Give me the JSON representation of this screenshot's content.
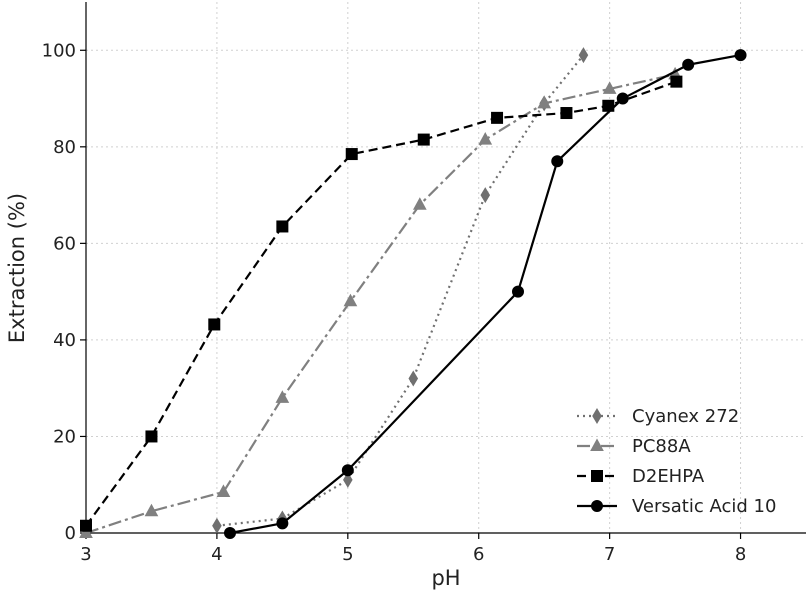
{
  "chart_data": {
    "type": "line",
    "xlabel": "pH",
    "ylabel": "Extraction (%)",
    "xlim": [
      3,
      8.5
    ],
    "ylim": [
      0,
      110
    ],
    "xticks": [
      "3",
      "4",
      "5",
      "6",
      "7",
      "8"
    ],
    "yticks": [
      "0",
      "20",
      "40",
      "60",
      "80",
      "100"
    ],
    "grid": true,
    "legend_position": "bottom-right",
    "series": [
      {
        "name": "Cyanex 272",
        "color": "#707070",
        "line_style": "dotted",
        "marker": "diamond",
        "x": [
          4.0,
          4.5,
          5.0,
          5.5,
          6.05,
          6.5,
          6.8
        ],
        "y": [
          1.5,
          3,
          11,
          32,
          70,
          89,
          99
        ]
      },
      {
        "name": "PC88A",
        "color": "#808080",
        "line_style": "dashdot",
        "marker": "triangle",
        "x": [
          3.0,
          3.5,
          4.05,
          4.5,
          5.02,
          5.55,
          6.05,
          6.5,
          7.0,
          7.5
        ],
        "y": [
          0,
          4.5,
          8.5,
          28,
          48,
          68,
          81.5,
          89,
          92,
          95
        ]
      },
      {
        "name": "D2EHPA",
        "color": "#000000",
        "line_style": "dashed",
        "marker": "square",
        "x": [
          3.0,
          3.5,
          3.98,
          4.5,
          5.03,
          5.58,
          6.14,
          6.67,
          6.99,
          7.51
        ],
        "y": [
          1.5,
          20,
          43.2,
          63.5,
          78.5,
          81.5,
          86,
          87,
          88.5,
          93.5
        ]
      },
      {
        "name": "Versatic Acid 10",
        "color": "#000000",
        "line_style": "solid",
        "marker": "circle",
        "x": [
          4.1,
          4.5,
          5.0,
          6.3,
          6.6,
          7.1,
          7.6,
          8.0
        ],
        "y": [
          0,
          2,
          13,
          50,
          77,
          90,
          97,
          99
        ]
      }
    ]
  }
}
